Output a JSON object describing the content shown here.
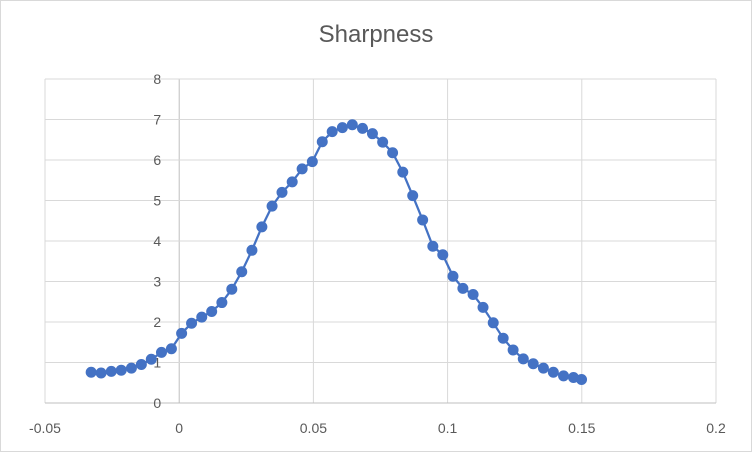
{
  "chart_data": {
    "type": "scatter",
    "title": "Sharpness",
    "xlabel": "",
    "ylabel": "",
    "xlim": [
      -0.05,
      0.2
    ],
    "ylim": [
      0,
      8
    ],
    "x_ticks": [
      "-0.05",
      "0",
      "0.05",
      "0.1",
      "0.15",
      "0.2"
    ],
    "y_ticks": [
      "0",
      "1",
      "2",
      "3",
      "4",
      "5",
      "6",
      "7",
      "8"
    ],
    "grid": true,
    "legend": "none",
    "marker": "circle",
    "line": "straight",
    "color": "#4472c4",
    "series": [
      {
        "points": [
          [
            -0.0328,
            0.76
          ],
          [
            -0.0291,
            0.74
          ],
          [
            -0.0253,
            0.78
          ],
          [
            -0.0216,
            0.81
          ],
          [
            -0.0178,
            0.86
          ],
          [
            -0.0141,
            0.95
          ],
          [
            -0.0104,
            1.08
          ],
          [
            -0.0066,
            1.25
          ],
          [
            -0.0029,
            1.34
          ],
          [
            0.0009,
            1.72
          ],
          [
            0.0046,
            1.97
          ],
          [
            0.0084,
            2.12
          ],
          [
            0.0121,
            2.26
          ],
          [
            0.0159,
            2.48
          ],
          [
            0.0196,
            2.81
          ],
          [
            0.0233,
            3.24
          ],
          [
            0.0271,
            3.77
          ],
          [
            0.0308,
            4.35
          ],
          [
            0.0346,
            4.86
          ],
          [
            0.0383,
            5.2
          ],
          [
            0.0421,
            5.46
          ],
          [
            0.0458,
            5.78
          ],
          [
            0.0496,
            5.96
          ],
          [
            0.0533,
            6.45
          ],
          [
            0.057,
            6.7
          ],
          [
            0.0608,
            6.8
          ],
          [
            0.0645,
            6.87
          ],
          [
            0.0683,
            6.78
          ],
          [
            0.072,
            6.65
          ],
          [
            0.0758,
            6.44
          ],
          [
            0.0795,
            6.18
          ],
          [
            0.0833,
            5.7
          ],
          [
            0.087,
            5.12
          ],
          [
            0.0907,
            4.52
          ],
          [
            0.0945,
            3.87
          ],
          [
            0.0982,
            3.66
          ],
          [
            0.102,
            3.13
          ],
          [
            0.1057,
            2.83
          ],
          [
            0.1095,
            2.68
          ],
          [
            0.1132,
            2.36
          ],
          [
            0.117,
            1.98
          ],
          [
            0.1207,
            1.6
          ],
          [
            0.1244,
            1.31
          ],
          [
            0.1282,
            1.09
          ],
          [
            0.1319,
            0.97
          ],
          [
            0.1357,
            0.86
          ],
          [
            0.1394,
            0.76
          ],
          [
            0.1432,
            0.67
          ],
          [
            0.1469,
            0.63
          ],
          [
            0.1499,
            0.58
          ]
        ]
      }
    ]
  }
}
